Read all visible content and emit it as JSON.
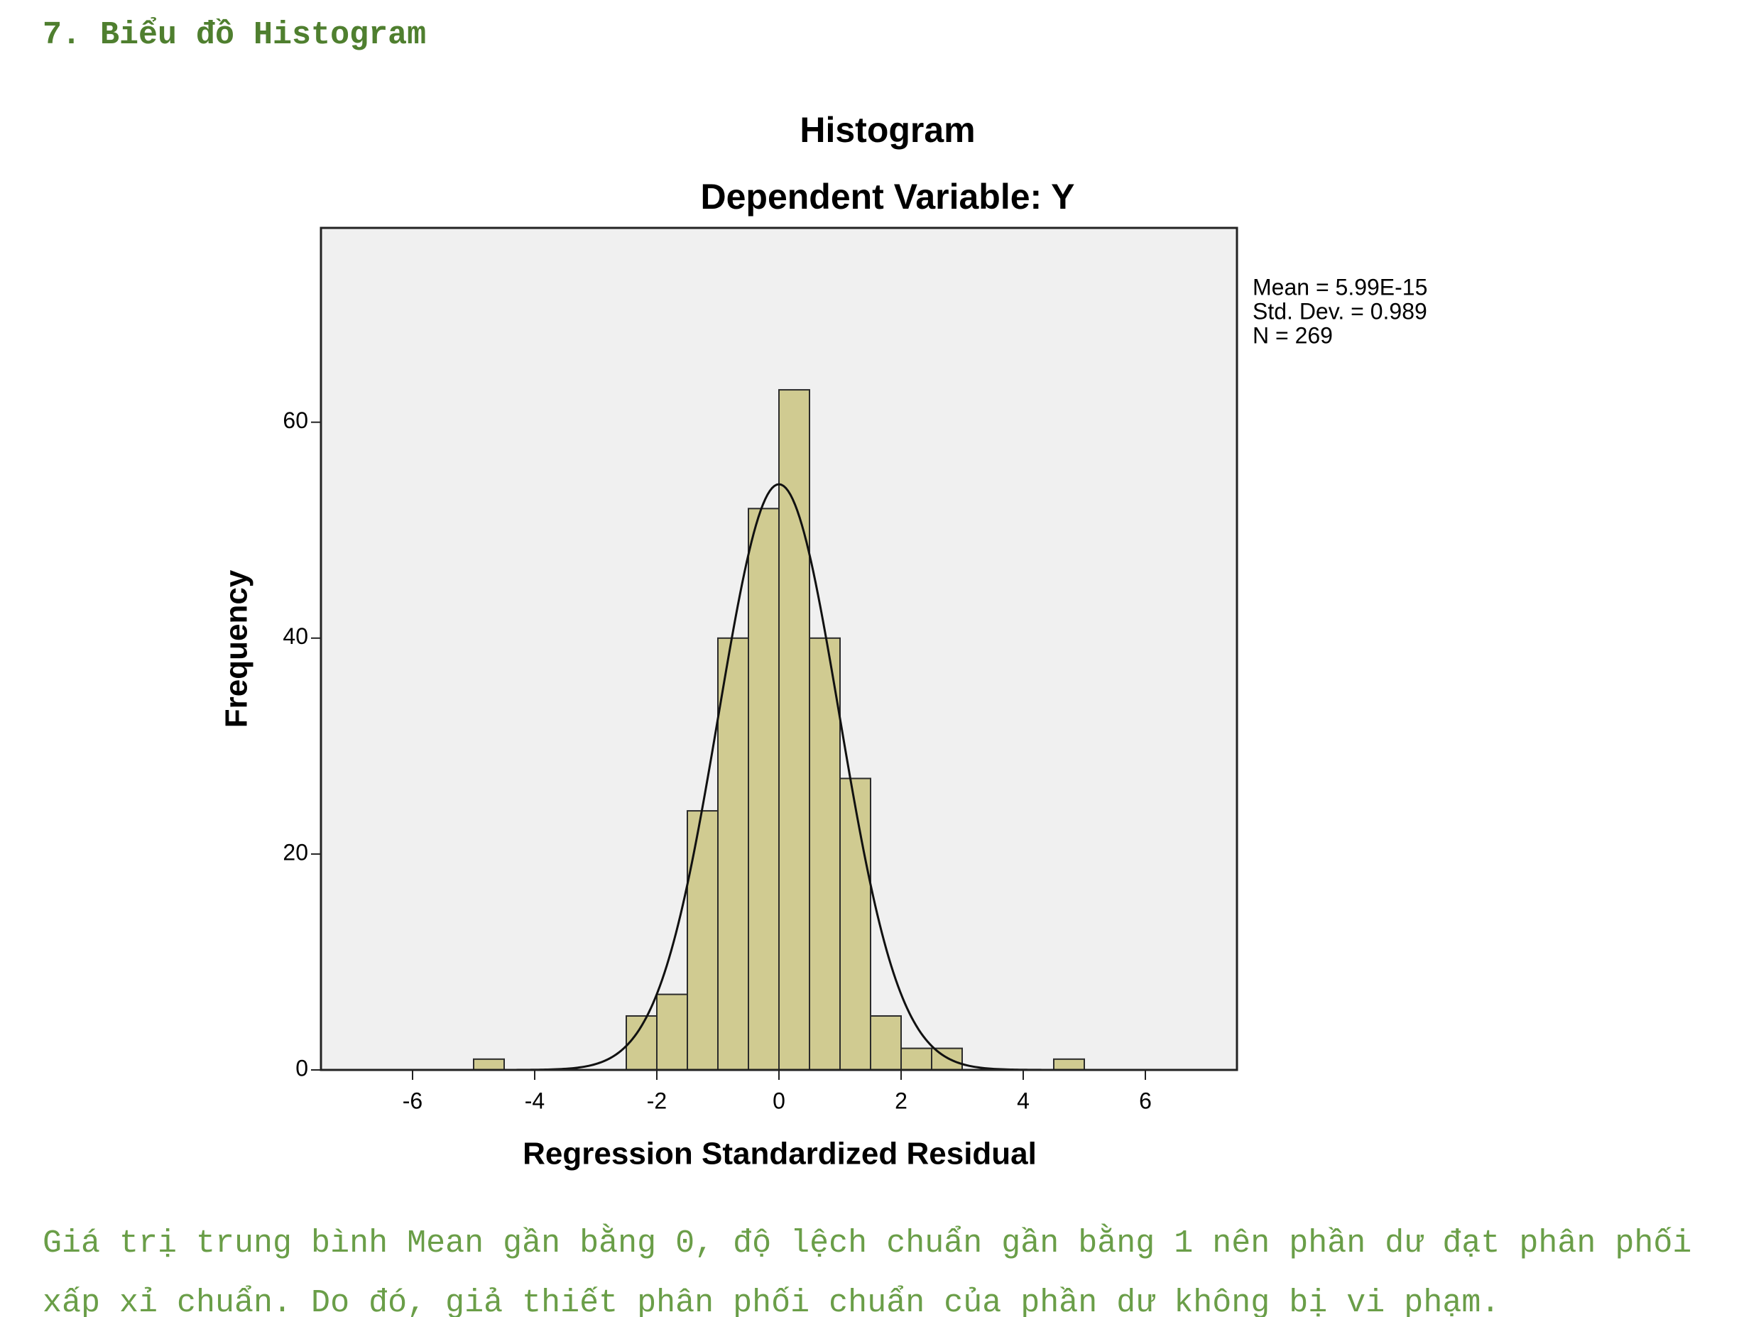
{
  "heading": "7. Biểu đồ Histogram",
  "chart_data": {
    "type": "histogram",
    "title": "Histogram",
    "subtitle": "Dependent Variable: Y",
    "x_label": "Regression Standardized Residual",
    "y_label": "Frequency",
    "bins": [
      -5,
      -4.5,
      -4,
      -3.5,
      -3,
      -2.5,
      -2,
      -1.5,
      -1,
      -0.5,
      0,
      0.5,
      1,
      1.5,
      2,
      2.5,
      3,
      3.5,
      4,
      4.5,
      5
    ],
    "values": [
      1,
      0,
      0,
      0,
      0,
      5,
      7,
      24,
      40,
      52,
      63,
      40,
      27,
      5,
      2,
      2,
      0,
      0,
      0,
      1
    ],
    "color": "#d0cb91",
    "xlim": [
      -7.5,
      7.5
    ],
    "ylim": [
      0,
      78
    ],
    "xticks": [
      -6,
      -4,
      -2,
      0,
      2,
      4,
      6
    ],
    "yticks": [
      0,
      20,
      40,
      60
    ],
    "stats": [
      {
        "text": "Mean = 5.99E-15",
        "value": 5.99e-15
      },
      {
        "text": "Std. Dev. = 0.989",
        "value": 0.989
      },
      {
        "text": "N = 269",
        "value": 269
      }
    ]
  },
  "paragraph": [
    "Giá trị trung bình Mean gần bằng 0, độ lệch chuẩn gần bằng 1 nên phần dư đạt phân phối",
    "xấp xỉ chuẩn. Do đó, giả thiết phân phối chuẩn của phần dư không bị vi phạm."
  ]
}
